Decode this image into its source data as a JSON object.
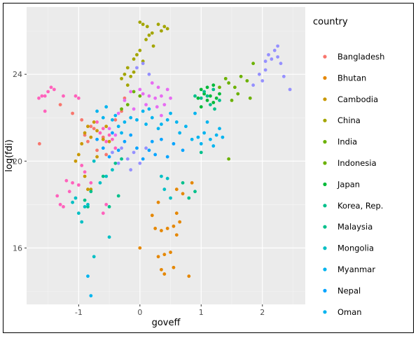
{
  "chart_data": {
    "type": "scatter",
    "title": "",
    "xlabel": "goveff",
    "ylabel": "log(fdi)",
    "xlim": [
      -1.85,
      2.7
    ],
    "ylim": [
      13.4,
      27.1
    ],
    "xticks": [
      -1,
      0,
      1,
      2
    ],
    "yticks": [
      16,
      20,
      24
    ],
    "grid": true,
    "background": "#EBEBEB",
    "legend": {
      "title": "country",
      "placement": "right"
    },
    "series": [
      {
        "name": "Bangladesh",
        "color": "#F8766D",
        "points": [
          [
            -1.64,
            20.8
          ],
          [
            -1.3,
            22.6
          ],
          [
            -1.1,
            22.2
          ],
          [
            -0.95,
            21.9
          ],
          [
            -0.9,
            21.2
          ],
          [
            -0.85,
            20.9
          ],
          [
            -0.8,
            21.6
          ],
          [
            -0.75,
            21.5
          ],
          [
            -0.7,
            20.5
          ],
          [
            -0.6,
            21.1
          ],
          [
            -0.55,
            20.3
          ],
          [
            -0.4,
            21.9
          ],
          [
            -0.3,
            22.3
          ],
          [
            -0.25,
            22.9
          ]
        ]
      },
      {
        "name": "Bhutan",
        "color": "#E58700",
        "points": [
          [
            0.0,
            16.0
          ],
          [
            0.2,
            17.5
          ],
          [
            0.25,
            16.9
          ],
          [
            0.3,
            15.6
          ],
          [
            0.3,
            18.1
          ],
          [
            0.35,
            15.0
          ],
          [
            0.35,
            16.8
          ],
          [
            0.4,
            14.8
          ],
          [
            0.4,
            15.7
          ],
          [
            0.45,
            16.9
          ],
          [
            0.5,
            15.8
          ],
          [
            0.55,
            17.0
          ],
          [
            0.55,
            15.1
          ],
          [
            0.6,
            16.6
          ],
          [
            0.6,
            17.6
          ],
          [
            0.6,
            18.7
          ],
          [
            0.65,
            17.2
          ],
          [
            0.7,
            18.5
          ],
          [
            0.8,
            14.7
          ],
          [
            0.85,
            19.0
          ]
        ]
      },
      {
        "name": "Cambodia",
        "color": "#C99800",
        "points": [
          [
            -1.05,
            20.0
          ],
          [
            -1.0,
            20.3
          ],
          [
            -0.95,
            20.8
          ],
          [
            -0.9,
            19.3
          ],
          [
            -0.9,
            21.3
          ],
          [
            -0.85,
            18.7
          ],
          [
            -0.85,
            21.6
          ],
          [
            -0.8,
            18.7
          ],
          [
            -0.8,
            21.1
          ],
          [
            -0.75,
            21.8
          ],
          [
            -0.7,
            21.4
          ],
          [
            -0.7,
            20.2
          ],
          [
            -0.6,
            21.0
          ],
          [
            -0.55,
            21.6
          ],
          [
            -0.5,
            20.9
          ]
        ]
      },
      {
        "name": "China",
        "color": "#A3A500",
        "points": [
          [
            -0.3,
            23.8
          ],
          [
            -0.25,
            24.0
          ],
          [
            -0.2,
            23.5
          ],
          [
            -0.2,
            24.3
          ],
          [
            -0.15,
            23.9
          ],
          [
            -0.1,
            24.1
          ],
          [
            -0.1,
            24.7
          ],
          [
            -0.05,
            24.9
          ],
          [
            0.0,
            25.1
          ],
          [
            0.0,
            26.4
          ],
          [
            0.05,
            26.3
          ],
          [
            0.05,
            24.6
          ],
          [
            0.1,
            25.6
          ],
          [
            0.12,
            26.2
          ],
          [
            0.15,
            25.8
          ],
          [
            0.2,
            25.9
          ],
          [
            0.22,
            25.3
          ],
          [
            0.3,
            26.3
          ],
          [
            0.35,
            26.0
          ],
          [
            0.4,
            26.2
          ],
          [
            0.45,
            26.1
          ]
        ]
      },
      {
        "name": "India",
        "color": "#6BB100",
        "points": [
          [
            -0.3,
            22.4
          ],
          [
            -0.2,
            22.6
          ],
          [
            -0.1,
            23.2
          ],
          [
            0.0,
            23.0
          ]
        ]
      },
      {
        "name": "Indonesia",
        "color": "#6BB100",
        "points": [
          [
            1.3,
            23.4
          ],
          [
            1.4,
            23.8
          ],
          [
            1.45,
            23.6
          ],
          [
            1.5,
            22.8
          ],
          [
            1.55,
            23.4
          ],
          [
            1.6,
            23.1
          ],
          [
            1.65,
            23.9
          ],
          [
            1.75,
            23.7
          ],
          [
            1.8,
            22.9
          ],
          [
            1.85,
            24.5
          ],
          [
            1.45,
            20.1
          ]
        ]
      },
      {
        "name": "Japan",
        "color": "#00BA38",
        "points": [
          [
            0.95,
            22.9
          ],
          [
            1.0,
            23.3
          ],
          [
            1.0,
            22.5
          ],
          [
            1.05,
            23.1
          ],
          [
            1.1,
            23.4
          ],
          [
            1.1,
            22.8
          ],
          [
            1.15,
            23.0
          ],
          [
            1.2,
            22.7
          ],
          [
            1.2,
            23.5
          ],
          [
            1.25,
            22.9
          ],
          [
            1.3,
            23.1
          ]
        ]
      },
      {
        "name": "Korea, Rep.",
        "color": "#00C08B",
        "points": [
          [
            0.9,
            23.0
          ],
          [
            1.0,
            22.9
          ],
          [
            1.05,
            23.2
          ],
          [
            1.1,
            23.0
          ],
          [
            1.15,
            22.6
          ],
          [
            1.2,
            23.3
          ],
          [
            1.22,
            22.4
          ],
          [
            1.3,
            22.8
          ]
        ]
      },
      {
        "name": "Malaysia",
        "color": "#00C08B",
        "points": [
          [
            -0.9,
            18.2
          ],
          [
            -0.85,
            17.9
          ],
          [
            -0.8,
            18.6
          ],
          [
            -0.6,
            19.3
          ],
          [
            -0.5,
            17.9
          ],
          [
            -0.4,
            19.9
          ],
          [
            -0.35,
            18.4
          ],
          [
            -0.3,
            20.1
          ],
          [
            0.7,
            19.0
          ],
          [
            0.8,
            18.3
          ],
          [
            0.9,
            18.6
          ],
          [
            1.0,
            20.4
          ]
        ]
      },
      {
        "name": "Mongolia",
        "color": "#00BFC4",
        "points": [
          [
            -1.1,
            18.1
          ],
          [
            -1.05,
            18.3
          ],
          [
            -1.0,
            17.6
          ],
          [
            -0.95,
            17.2
          ],
          [
            -0.9,
            17.9
          ],
          [
            -0.85,
            18.0
          ],
          [
            -0.75,
            15.6
          ],
          [
            -0.5,
            16.5
          ],
          [
            -0.75,
            20.0
          ],
          [
            -0.65,
            19.0
          ],
          [
            -0.55,
            19.3
          ],
          [
            -0.45,
            19.6
          ],
          [
            0.35,
            19.3
          ],
          [
            0.45,
            19.2
          ],
          [
            0.4,
            18.7
          ],
          [
            0.5,
            18.3
          ]
        ]
      },
      {
        "name": "Myanmar",
        "color": "#00B4EF",
        "points": [
          [
            -0.85,
            14.7
          ],
          [
            -0.8,
            13.8
          ],
          [
            -0.7,
            22.3
          ],
          [
            -0.6,
            22.0
          ],
          [
            -0.55,
            22.5
          ],
          [
            -0.45,
            21.9
          ],
          [
            -0.4,
            22.1
          ],
          [
            -0.35,
            21.6
          ],
          [
            -0.3,
            21.3
          ],
          [
            -0.25,
            21.8
          ],
          [
            -0.15,
            22.0
          ],
          [
            -0.05,
            21.9
          ],
          [
            0.05,
            22.3
          ],
          [
            0.1,
            21.7
          ],
          [
            0.15,
            22.4
          ],
          [
            0.2,
            22.0
          ],
          [
            0.3,
            21.5
          ],
          [
            0.35,
            21.7
          ],
          [
            0.45,
            21.9
          ],
          [
            0.5,
            22.2
          ],
          [
            0.6,
            21.8
          ]
        ]
      },
      {
        "name": "Nepal",
        "color": "#06A4FF",
        "points": [
          [
            -0.7,
            21.0
          ],
          [
            -0.6,
            20.6
          ],
          [
            -0.5,
            20.2
          ],
          [
            -0.45,
            21.3
          ],
          [
            -0.35,
            20.5
          ],
          [
            -0.25,
            20.9
          ],
          [
            -0.15,
            21.2
          ],
          [
            -0.05,
            20.6
          ],
          [
            0.05,
            20.1
          ],
          [
            0.15,
            20.5
          ],
          [
            0.2,
            20.9
          ],
          [
            0.25,
            20.3
          ],
          [
            0.35,
            21.0
          ],
          [
            0.45,
            20.2
          ],
          [
            0.55,
            20.8
          ],
          [
            0.7,
            20.5
          ]
        ]
      },
      {
        "name": "Oman",
        "color": "#00B4EF",
        "points": [
          [
            0.75,
            21.6
          ],
          [
            0.85,
            21.0
          ],
          [
            0.9,
            22.2
          ],
          [
            0.95,
            21.1
          ],
          [
            1.0,
            20.8
          ],
          [
            1.05,
            21.3
          ],
          [
            1.1,
            21.8
          ],
          [
            1.15,
            21.0
          ],
          [
            1.2,
            20.7
          ],
          [
            1.25,
            21.2
          ],
          [
            1.3,
            21.5
          ],
          [
            1.35,
            21.1
          ],
          [
            0.65,
            21.3
          ]
        ]
      },
      {
        "name": "",
        "color": "#9590FF",
        "points": [
          [
            -0.45,
            20.4
          ],
          [
            -0.35,
            19.9
          ],
          [
            -0.3,
            20.6
          ],
          [
            -0.2,
            20.1
          ],
          [
            -0.15,
            19.6
          ],
          [
            -0.1,
            20.4
          ],
          [
            0.0,
            19.9
          ],
          [
            0.1,
            20.6
          ],
          [
            -0.05,
            24.3
          ],
          [
            0.05,
            24.5
          ],
          [
            0.15,
            24.0
          ],
          [
            1.85,
            23.5
          ],
          [
            2.0,
            23.7
          ],
          [
            2.05,
            24.6
          ],
          [
            2.1,
            24.9
          ],
          [
            2.15,
            24.7
          ],
          [
            2.2,
            25.1
          ],
          [
            2.25,
            25.3
          ],
          [
            2.25,
            24.8
          ],
          [
            2.3,
            24.5
          ],
          [
            2.35,
            23.9
          ],
          [
            2.45,
            23.3
          ],
          [
            2.05,
            24.2
          ],
          [
            1.95,
            24.0
          ]
        ]
      },
      {
        "name": "",
        "color": "#E76BF3",
        "points": [
          [
            -0.35,
            22.2
          ],
          [
            -0.25,
            22.8
          ],
          [
            -0.15,
            23.2
          ],
          [
            -0.1,
            22.4
          ],
          [
            0.0,
            23.3
          ],
          [
            0.05,
            23.1
          ],
          [
            0.1,
            22.6
          ],
          [
            0.15,
            23.0
          ],
          [
            0.2,
            23.6
          ],
          [
            0.25,
            22.9
          ],
          [
            0.3,
            23.4
          ],
          [
            0.35,
            23.0
          ],
          [
            0.4,
            22.6
          ],
          [
            0.45,
            23.3
          ],
          [
            0.5,
            22.9
          ],
          [
            -0.4,
            21.2
          ],
          [
            -0.5,
            21.5
          ],
          [
            0.35,
            22.1
          ],
          [
            0.28,
            22.5
          ]
        ]
      },
      {
        "name": "",
        "color": "#FF62BC",
        "points": [
          [
            -1.65,
            22.9
          ],
          [
            -1.6,
            23.0
          ],
          [
            -1.55,
            22.3
          ],
          [
            -1.5,
            23.2
          ],
          [
            -1.45,
            23.4
          ],
          [
            -1.4,
            23.3
          ],
          [
            -1.55,
            23.0
          ],
          [
            -1.05,
            23.0
          ],
          [
            -1.0,
            22.9
          ],
          [
            -1.25,
            23.0
          ],
          [
            -1.2,
            19.1
          ],
          [
            -1.1,
            19.0
          ],
          [
            -1.15,
            18.6
          ],
          [
            -1.0,
            18.9
          ],
          [
            -1.3,
            18.0
          ],
          [
            -1.25,
            17.9
          ],
          [
            -1.35,
            18.4
          ],
          [
            -0.7,
            21.8
          ],
          [
            -0.65,
            21.3
          ],
          [
            -0.6,
            21.5
          ],
          [
            -0.55,
            20.9
          ],
          [
            -0.5,
            21.2
          ],
          [
            -0.45,
            21.0
          ],
          [
            -0.4,
            20.6
          ],
          [
            -0.6,
            17.6
          ],
          [
            -0.55,
            18.0
          ],
          [
            -0.95,
            19.8
          ],
          [
            -0.9,
            19.5
          ],
          [
            -0.8,
            19.0
          ]
        ]
      }
    ]
  }
}
